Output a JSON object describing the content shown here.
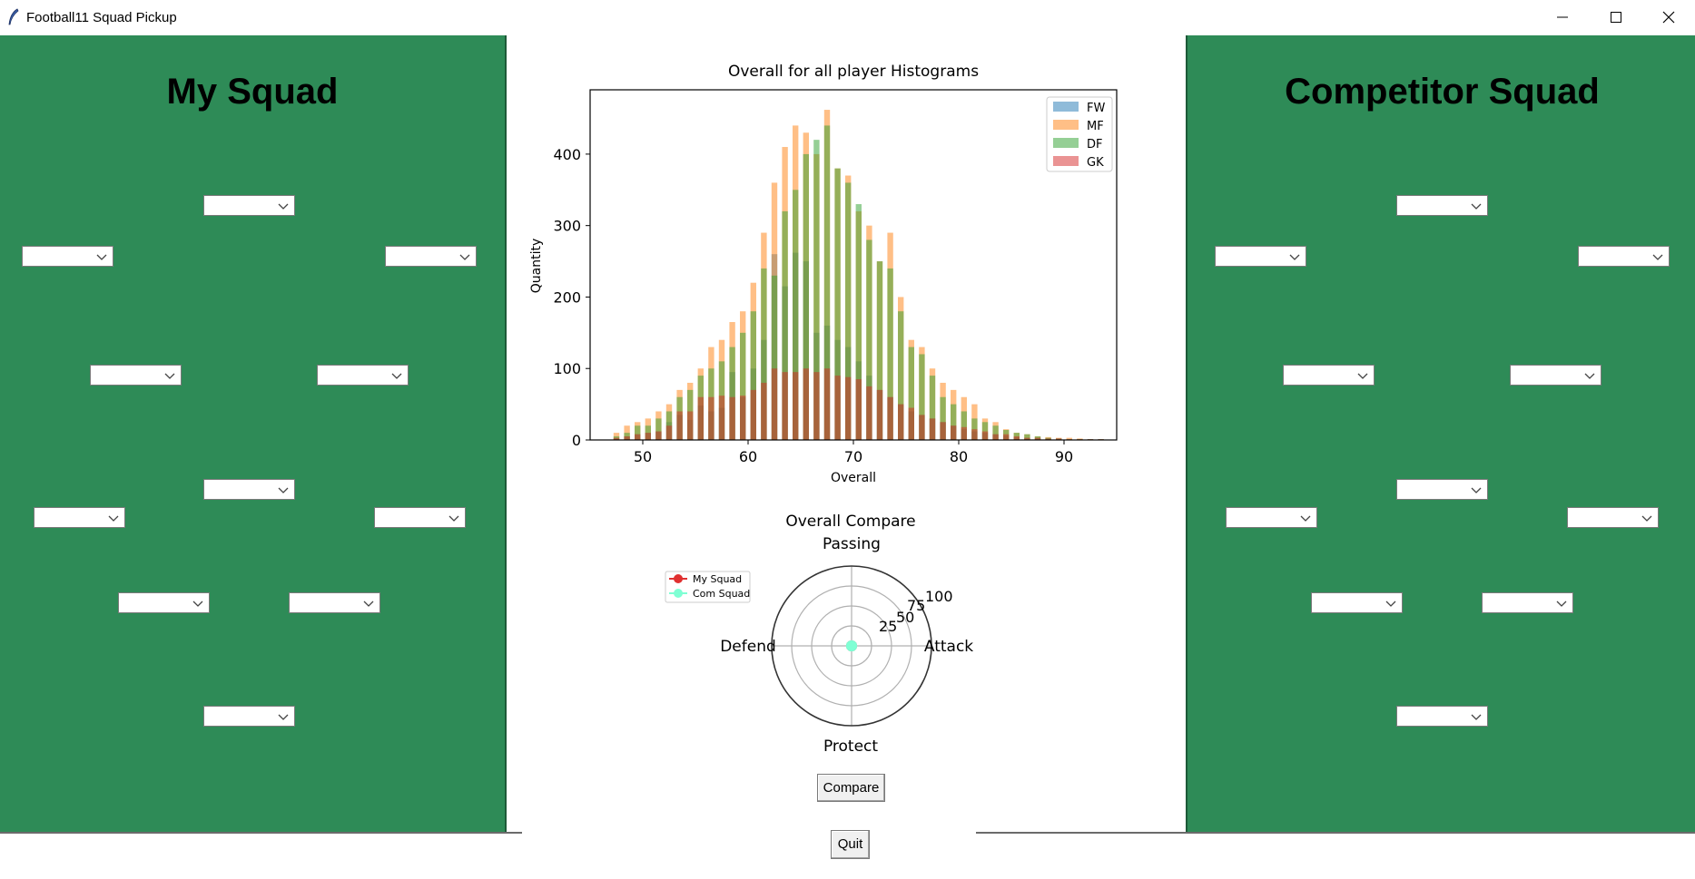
{
  "window": {
    "title": "Football11 Squad Pickup",
    "icon": "feather-icon",
    "controls": [
      "minimize-icon",
      "maximize-icon",
      "close-icon"
    ]
  },
  "my_squad": {
    "title": "My Squad",
    "slots": [
      "",
      "",
      "",
      "",
      "",
      "",
      "",
      "",
      "",
      "",
      ""
    ]
  },
  "competitor_squad": {
    "title": "Competitor Squad",
    "slots": [
      "",
      "",
      "",
      "",
      "",
      "",
      "",
      "",
      "",
      "",
      ""
    ]
  },
  "histogram": {
    "title": "Overall for all player Histograms",
    "xlabel": "Overall",
    "ylabel": "Quantity",
    "x_ticks": [
      "50",
      "60",
      "70",
      "80",
      "90"
    ],
    "y_ticks": [
      "0",
      "100",
      "200",
      "300",
      "400"
    ],
    "legend": [
      {
        "label": "FW",
        "color": "#1f77b4"
      },
      {
        "label": "MF",
        "color": "#ff7f0e"
      },
      {
        "label": "DF",
        "color": "#2ca02c"
      },
      {
        "label": "GK",
        "color": "#d62728"
      }
    ]
  },
  "radar": {
    "title": "Overall Compare",
    "axes": {
      "top": "Passing",
      "right": "Attack",
      "bottom": "Protect",
      "left": "Defend"
    },
    "rings": [
      "25",
      "50",
      "75",
      "100"
    ],
    "legend": [
      {
        "label": "My Squad",
        "color": "#e03030"
      },
      {
        "label": "Com Squad",
        "color": "#7fffd4"
      }
    ]
  },
  "buttons": {
    "compare": "Compare",
    "quit": "Quit"
  },
  "colors": {
    "pitch": "#2e8b57"
  },
  "chart_data": [
    {
      "type": "bar",
      "title": "Overall for all player Histograms",
      "xlabel": "Overall",
      "ylabel": "Quantity",
      "xlim": [
        45,
        95
      ],
      "ylim": [
        0,
        490
      ],
      "bin_starts": [
        47,
        48,
        49,
        50,
        51,
        52,
        53,
        54,
        55,
        56,
        57,
        58,
        59,
        60,
        61,
        62,
        63,
        64,
        65,
        66,
        67,
        68,
        69,
        70,
        71,
        72,
        73,
        74,
        75,
        76,
        77,
        78,
        79,
        80,
        81,
        82,
        83,
        84,
        85,
        86,
        87,
        88,
        89,
        90,
        91,
        92,
        93
      ],
      "series": [
        {
          "name": "FW",
          "values": [
            2,
            5,
            8,
            10,
            12,
            25,
            35,
            28,
            48,
            40,
            45,
            95,
            60,
            100,
            140,
            260,
            215,
            262,
            250,
            150,
            160,
            140,
            130,
            110,
            90,
            70,
            60,
            50,
            40,
            35,
            30,
            25,
            20,
            15,
            12,
            10,
            8,
            6,
            4,
            3,
            3,
            2,
            2,
            1,
            1,
            1,
            1
          ]
        },
        {
          "name": "MF",
          "values": [
            10,
            20,
            25,
            30,
            40,
            50,
            70,
            80,
            100,
            130,
            140,
            165,
            180,
            220,
            290,
            360,
            410,
            440,
            430,
            400,
            462,
            380,
            370,
            320,
            300,
            250,
            290,
            200,
            140,
            130,
            100,
            80,
            70,
            60,
            50,
            30,
            25,
            15,
            10,
            8,
            5,
            4,
            3,
            3,
            2,
            1,
            1
          ]
        },
        {
          "name": "DF",
          "values": [
            5,
            10,
            20,
            20,
            30,
            40,
            60,
            70,
            90,
            100,
            110,
            130,
            150,
            180,
            240,
            230,
            320,
            350,
            400,
            420,
            440,
            380,
            360,
            330,
            280,
            250,
            240,
            180,
            130,
            120,
            90,
            60,
            50,
            40,
            30,
            25,
            20,
            14,
            10,
            8,
            5,
            3,
            2,
            1,
            1,
            1,
            1
          ]
        },
        {
          "name": "GK",
          "values": [
            3,
            5,
            8,
            10,
            12,
            20,
            40,
            40,
            60,
            60,
            62,
            60,
            62,
            70,
            80,
            100,
            95,
            95,
            100,
            95,
            100,
            90,
            88,
            85,
            75,
            70,
            60,
            50,
            45,
            35,
            30,
            25,
            20,
            18,
            15,
            12,
            8,
            8,
            5,
            3,
            3,
            2,
            2,
            1,
            1,
            1,
            1
          ]
        }
      ]
    },
    {
      "type": "radar",
      "title": "Overall Compare",
      "axes": [
        "Passing",
        "Attack",
        "Protect",
        "Defend"
      ],
      "rlim": [
        0,
        100
      ],
      "series": [
        {
          "name": "My Squad",
          "values": [
            0,
            0,
            0,
            0
          ]
        },
        {
          "name": "Com Squad",
          "values": [
            0,
            0,
            0,
            0
          ]
        }
      ]
    }
  ]
}
